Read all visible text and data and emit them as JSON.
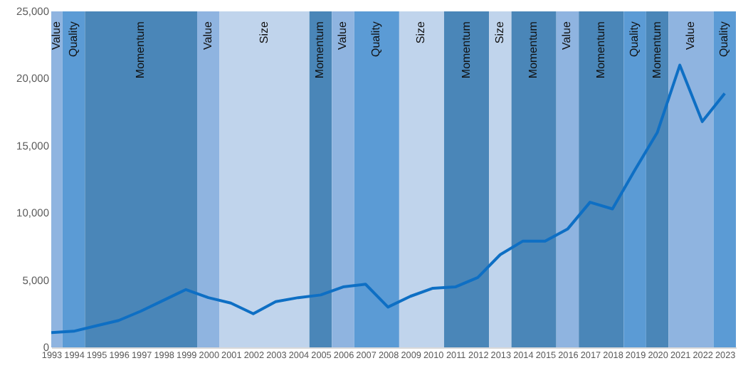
{
  "chart_data": {
    "type": "line",
    "x": [
      1993,
      1994,
      1995,
      1996,
      1997,
      1998,
      1999,
      2000,
      2001,
      2002,
      2003,
      2004,
      2005,
      2006,
      2007,
      2008,
      2009,
      2010,
      2011,
      2012,
      2013,
      2014,
      2015,
      2016,
      2017,
      2018,
      2019,
      2020,
      2021,
      2022,
      2023
    ],
    "line_style": "solid",
    "series": [
      {
        "color": "#0e6fc4",
        "values": [
          1100,
          1200,
          1600,
          2000,
          2700,
          3500,
          4300,
          3700,
          3300,
          2500,
          3400,
          3700,
          3900,
          4500,
          4700,
          3000,
          3800,
          4400,
          4500,
          5200,
          6900,
          7900,
          7900,
          8800,
          10800,
          10300,
          13200,
          16000,
          21000,
          16800,
          18900
        ]
      }
    ],
    "xlim": [
      1993,
      2023.5
    ],
    "xticks": [
      1993,
      1994,
      1995,
      1996,
      1997,
      1998,
      1999,
      2000,
      2001,
      2002,
      2003,
      2004,
      2005,
      2006,
      2007,
      2008,
      2009,
      2010,
      2011,
      2012,
      2013,
      2014,
      2015,
      2016,
      2017,
      2018,
      2019,
      2020,
      2021,
      2022,
      2023
    ],
    "ylim": [
      0,
      25000
    ],
    "yticks": [
      {
        "value": 0,
        "label": "0"
      },
      {
        "value": 5000,
        "label": "5,000"
      },
      {
        "value": 10000,
        "label": "10,000"
      },
      {
        "value": 15000,
        "label": "15,000"
      },
      {
        "value": 20000,
        "label": "20,000"
      },
      {
        "value": 25000,
        "label": "25,000"
      }
    ],
    "bands": [
      {
        "axis": "x",
        "from": 1993,
        "to": 1993.5,
        "label": "Value",
        "color": "#8fb4e0"
      },
      {
        "axis": "x",
        "from": 1993.5,
        "to": 1994.5,
        "label": "Quality",
        "color": "#5b9bd5"
      },
      {
        "axis": "x",
        "from": 1994.5,
        "to": 1999.5,
        "label": "Momentum",
        "color": "#4a86b8"
      },
      {
        "axis": "x",
        "from": 1999.5,
        "to": 2000.5,
        "label": "Value",
        "color": "#8fb4e0"
      },
      {
        "axis": "x",
        "from": 2000.5,
        "to": 2004.5,
        "label": "Size",
        "color": "#c0d4ec"
      },
      {
        "axis": "x",
        "from": 2004.5,
        "to": 2005.5,
        "label": "Momentum",
        "color": "#4a86b8"
      },
      {
        "axis": "x",
        "from": 2005.5,
        "to": 2006.5,
        "label": "Value",
        "color": "#8fb4e0"
      },
      {
        "axis": "x",
        "from": 2006.5,
        "to": 2008.5,
        "label": "Quality",
        "color": "#5b9bd5"
      },
      {
        "axis": "x",
        "from": 2008.5,
        "to": 2010.5,
        "label": "Size",
        "color": "#c0d4ec"
      },
      {
        "axis": "x",
        "from": 2010.5,
        "to": 2012.5,
        "label": "Momentum",
        "color": "#4a86b8"
      },
      {
        "axis": "x",
        "from": 2012.5,
        "to": 2013.5,
        "label": "Size",
        "color": "#c0d4ec"
      },
      {
        "axis": "x",
        "from": 2013.5,
        "to": 2015.5,
        "label": "Momentum",
        "color": "#4a86b8"
      },
      {
        "axis": "x",
        "from": 2015.5,
        "to": 2016.5,
        "label": "Value",
        "color": "#8fb4e0"
      },
      {
        "axis": "x",
        "from": 2016.5,
        "to": 2018.5,
        "label": "Momentum",
        "color": "#4a86b8"
      },
      {
        "axis": "x",
        "from": 2018.5,
        "to": 2019.5,
        "label": "Quality",
        "color": "#5b9bd5"
      },
      {
        "axis": "x",
        "from": 2019.5,
        "to": 2020.5,
        "label": "Momentum",
        "color": "#4a86b8"
      },
      {
        "axis": "x",
        "from": 2020.5,
        "to": 2022.5,
        "label": "Value",
        "color": "#8fb4e0"
      },
      {
        "axis": "x",
        "from": 2022.5,
        "to": 2023.5,
        "label": "Quality",
        "color": "#5b9bd5"
      }
    ]
  }
}
